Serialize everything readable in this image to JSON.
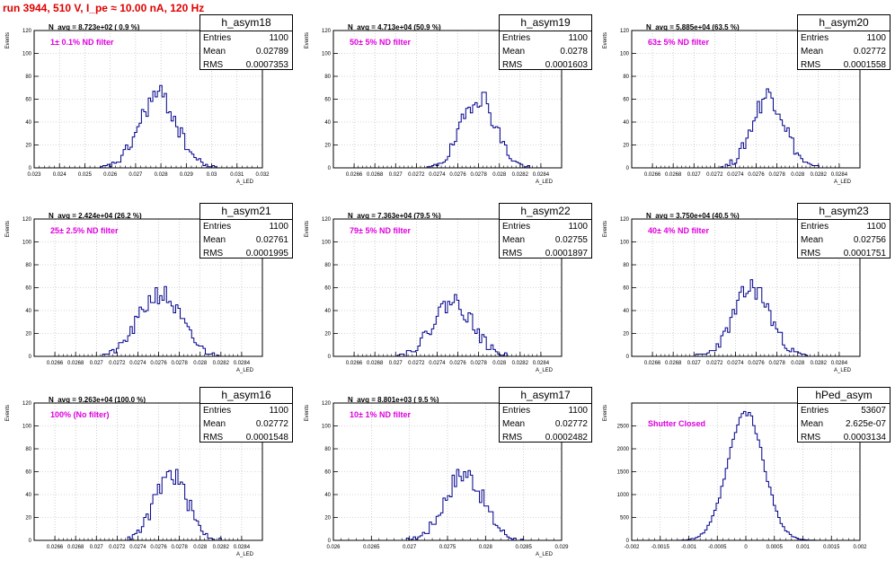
{
  "header": {
    "run_title": "run 3944,   510 V, I_pe ≈ 10.00 nA, 120 Hz"
  },
  "panels": [
    {
      "name": "h_asym18",
      "entries": "1100",
      "mean": "0.02789",
      "rms": "0.0007353",
      "navg": "N_avg = 8.723e+02 ( 0.9 %)",
      "filter": "1± 0.1% ND filter"
    },
    {
      "name": "h_asym19",
      "entries": "1100",
      "mean": "0.0278",
      "rms": "0.0001603",
      "navg": "N_avg = 4.713e+04 (50.9 %)",
      "filter": "50± 5% ND filter"
    },
    {
      "name": "h_asym20",
      "entries": "1100",
      "mean": "0.02772",
      "rms": "0.0001558",
      "navg": "N_avg = 5.885e+04 (63.5 %)",
      "filter": "63± 5% ND filter"
    },
    {
      "name": "h_asym21",
      "entries": "1100",
      "mean": "0.02761",
      "rms": "0.0001995",
      "navg": "N_avg = 2.424e+04 (26.2 %)",
      "filter": "25± 2.5% ND filter"
    },
    {
      "name": "h_asym22",
      "entries": "1100",
      "mean": "0.02755",
      "rms": "0.0001897",
      "navg": "N_avg = 7.363e+04 (79.5 %)",
      "filter": "79± 5% ND filter"
    },
    {
      "name": "h_asym23",
      "entries": "1100",
      "mean": "0.02756",
      "rms": "0.0001751",
      "navg": "N_avg = 3.750e+04 (40.5 %)",
      "filter": "40± 4% ND filter"
    },
    {
      "name": "h_asym16",
      "entries": "1100",
      "mean": "0.02772",
      "rms": "0.0001548",
      "navg": "N_avg = 9.263e+04 (100.0 %)",
      "filter": "100% (No filter)"
    },
    {
      "name": "h_asym17",
      "entries": "1100",
      "mean": "0.02772",
      "rms": "0.0002482",
      "navg": "N_avg = 8.801e+03 ( 9.5 %)",
      "filter": "10± 1% ND filter"
    },
    {
      "name": "hPed_asym",
      "entries": "53607",
      "mean": "2.625e-07",
      "rms": "0.0003134",
      "navg": "",
      "filter": "Shutter Closed"
    }
  ],
  "stat_labels": {
    "entries": "Entries",
    "mean": "Mean",
    "rms": "RMS"
  },
  "colors": {
    "histogram": "#00008b",
    "title": "#e00000",
    "filter_text": "#e000e0",
    "grid": "#b0b0b0"
  },
  "chart_data": [
    {
      "type": "bar",
      "name": "h_asym18",
      "ylabel": "Events",
      "xlabel": "A_LED",
      "xlim": [
        0.023,
        0.032
      ],
      "ylim": [
        0,
        120
      ],
      "grid": true,
      "yticks": [
        "0",
        "20",
        "40",
        "60",
        "80",
        "100",
        "120"
      ],
      "xticks": [
        "0.023",
        "0.024",
        "0.025",
        "0.026",
        "0.027",
        "0.028",
        "0.029",
        "0.03",
        "0.031",
        "0.032"
      ],
      "mean": 0.02789,
      "rms": 0.0007353,
      "peak": 63,
      "nbins": 100,
      "seed": 18
    },
    {
      "type": "bar",
      "name": "h_asym19",
      "ylabel": "Events",
      "xlabel": "A_LED",
      "xlim": [
        0.0264,
        0.0286
      ],
      "ylim": [
        0,
        120
      ],
      "grid": true,
      "yticks": [
        "0",
        "20",
        "40",
        "60",
        "80",
        "100",
        "120"
      ],
      "xticks": [
        "0.0266",
        "0.0268",
        "0.027",
        "0.0272",
        "0.0274",
        "0.0276",
        "0.0278",
        "0.028",
        "0.0282",
        "0.0284"
      ],
      "mean": 0.0278,
      "rms": 0.0001603,
      "peak": 63,
      "nbins": 100,
      "seed": 19
    },
    {
      "type": "bar",
      "name": "h_asym20",
      "ylabel": "Events",
      "xlabel": "A_LED",
      "xlim": [
        0.0264,
        0.0286
      ],
      "ylim": [
        0,
        120
      ],
      "grid": true,
      "yticks": [
        "0",
        "20",
        "40",
        "60",
        "80",
        "100",
        "120"
      ],
      "xticks": [
        "0.0266",
        "0.0268",
        "0.027",
        "0.0272",
        "0.0274",
        "0.0276",
        "0.0278",
        "0.028",
        "0.0282",
        "0.0284"
      ],
      "mean": 0.02772,
      "rms": 0.0001558,
      "peak": 64,
      "nbins": 100,
      "seed": 20
    },
    {
      "type": "bar",
      "name": "h_asym21",
      "ylabel": "Events",
      "xlabel": "A_LED",
      "xlim": [
        0.0264,
        0.0286
      ],
      "ylim": [
        0,
        120
      ],
      "grid": true,
      "yticks": [
        "0",
        "20",
        "40",
        "60",
        "80",
        "100",
        "120"
      ],
      "xticks": [
        "0.0266",
        "0.0268",
        "0.027",
        "0.0272",
        "0.0274",
        "0.0276",
        "0.0278",
        "0.028",
        "0.0282",
        "0.0284"
      ],
      "mean": 0.02761,
      "rms": 0.0001995,
      "peak": 55,
      "nbins": 100,
      "seed": 21
    },
    {
      "type": "bar",
      "name": "h_asym22",
      "ylabel": "Events",
      "xlabel": "A_LED",
      "xlim": [
        0.0264,
        0.0286
      ],
      "ylim": [
        0,
        120
      ],
      "grid": true,
      "yticks": [
        "0",
        "20",
        "40",
        "60",
        "80",
        "100",
        "120"
      ],
      "xticks": [
        "0.0266",
        "0.0268",
        "0.027",
        "0.0272",
        "0.0274",
        "0.0276",
        "0.0278",
        "0.028",
        "0.0282",
        "0.0284"
      ],
      "mean": 0.02755,
      "rms": 0.0001897,
      "peak": 48,
      "nbins": 100,
      "seed": 22
    },
    {
      "type": "bar",
      "name": "h_asym23",
      "ylabel": "Events",
      "xlabel": "A_LED",
      "xlim": [
        0.0264,
        0.0286
      ],
      "ylim": [
        0,
        120
      ],
      "grid": true,
      "yticks": [
        "0",
        "20",
        "40",
        "60",
        "80",
        "100",
        "120"
      ],
      "xticks": [
        "0.0266",
        "0.0268",
        "0.027",
        "0.0272",
        "0.0274",
        "0.0276",
        "0.0278",
        "0.028",
        "0.0282",
        "0.0284"
      ],
      "mean": 0.02756,
      "rms": 0.0001751,
      "peak": 60,
      "nbins": 100,
      "seed": 23
    },
    {
      "type": "bar",
      "name": "h_asym16",
      "ylabel": "Events",
      "xlabel": "A_LED",
      "xlim": [
        0.0264,
        0.0286
      ],
      "ylim": [
        0,
        120
      ],
      "grid": true,
      "yticks": [
        "0",
        "20",
        "40",
        "60",
        "80",
        "100",
        "120"
      ],
      "xticks": [
        "0.0266",
        "0.0268",
        "0.027",
        "0.0272",
        "0.0274",
        "0.0276",
        "0.0278",
        "0.028",
        "0.0282",
        "0.0284"
      ],
      "mean": 0.02772,
      "rms": 0.0001548,
      "peak": 58,
      "nbins": 100,
      "seed": 16
    },
    {
      "type": "bar",
      "name": "h_asym17",
      "ylabel": "Events",
      "xlabel": "A_LED",
      "xlim": [
        0.026,
        0.029
      ],
      "ylim": [
        0,
        120
      ],
      "grid": true,
      "yticks": [
        "0",
        "20",
        "40",
        "60",
        "80",
        "100",
        "120"
      ],
      "xticks": [
        "0.026",
        "0.0265",
        "0.027",
        "0.0275",
        "0.028",
        "0.0285",
        "0.029"
      ],
      "mean": 0.02772,
      "rms": 0.0002482,
      "peak": 59,
      "nbins": 100,
      "seed": 17
    },
    {
      "type": "bar",
      "name": "hPed_asym",
      "ylabel": "Events",
      "xlabel": "",
      "xlim": [
        -0.002,
        0.002
      ],
      "ylim": [
        0,
        3000
      ],
      "grid": true,
      "yticks": [
        "0",
        "500",
        "1000",
        "1500",
        "2000",
        "2500"
      ],
      "xticks": [
        "-0.002",
        "-0.0015",
        "-0.001",
        "-0.0005",
        "0",
        "0.0005",
        "0.001",
        "0.0015",
        "0.002"
      ],
      "mean": 0.0,
      "rms": 0.0003134,
      "peak": 2790,
      "nbins": 100,
      "seed": 99
    }
  ]
}
